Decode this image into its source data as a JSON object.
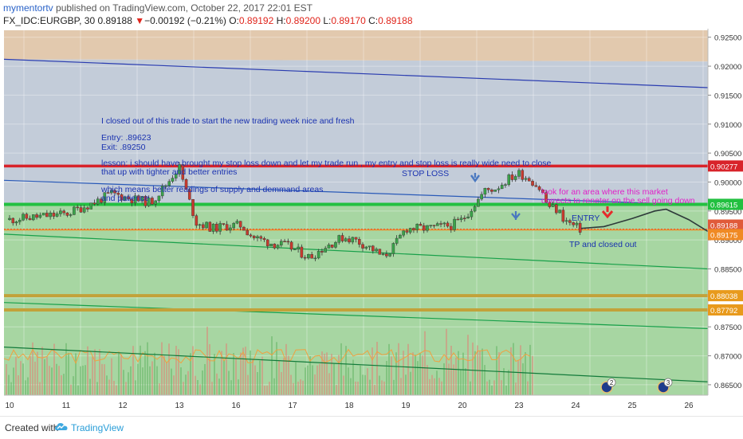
{
  "header": {
    "author": "mymentortv",
    "published": "published on TradingView.com, October 22, 2017 22:01 EST",
    "symbol": "FX_IDC:EURGBP, 30",
    "last": "0.89188",
    "arrow": "▼",
    "change": "−0.00192 (−0.21%)",
    "o_label": "O:",
    "o": "0.89192",
    "h_label": "H:",
    "h": "0.89200",
    "l_label": "L:",
    "l": "0.89170",
    "c_label": "C:",
    "c": "0.89188"
  },
  "footer": {
    "created": "Created with",
    "brand": "TradingView"
  },
  "colors": {
    "upper_zone": "#e2c9ae",
    "channel_zone": "#c3ccd9",
    "lower_zone": "#a7d6a2",
    "stop_line": "#d8232a",
    "entry_line": "#22c040",
    "tp_line": "#f08a24",
    "supply_line": "#c2a23a",
    "channel_line": "#2a3cb0",
    "green_line": "#18a04a",
    "candle_up": "#3aa44a",
    "candle_down": "#c83a2e",
    "note_text": "#1a32b0",
    "note_pink": "#e020c8",
    "arrow_blue": "#4a78c0",
    "arrow_red": "#e52b2b"
  },
  "chart_data": {
    "type": "candlestick",
    "x_ticks": [
      "10",
      "11",
      "12",
      "13",
      "16",
      "17",
      "18",
      "19",
      "20",
      "23",
      "24",
      "25",
      "26"
    ],
    "y_ticks": [
      "0.92500",
      "0.92000",
      "0.91500",
      "0.91000",
      "0.90500",
      "0.90000",
      "0.89500",
      "0.89000",
      "0.88500",
      "0.88000",
      "0.87500",
      "0.87000",
      "0.86500"
    ],
    "ylim": [
      0.8632,
      0.9262
    ],
    "price_trace": [
      [
        0.0,
        0.8935
      ],
      [
        0.5,
        0.894
      ],
      [
        1.0,
        0.8945
      ],
      [
        1.5,
        0.8965
      ],
      [
        1.8,
        0.898
      ],
      [
        2.2,
        0.897
      ],
      [
        2.5,
        0.8965
      ],
      [
        2.8,
        0.9
      ],
      [
        2.9,
        0.9015
      ],
      [
        3.0,
        0.9025
      ],
      [
        3.1,
        0.899
      ],
      [
        3.3,
        0.893
      ],
      [
        3.6,
        0.892
      ],
      [
        3.9,
        0.8925
      ],
      [
        4.1,
        0.8925
      ],
      [
        4.3,
        0.8905
      ],
      [
        4.6,
        0.8895
      ],
      [
        4.9,
        0.889
      ],
      [
        5.1,
        0.888
      ],
      [
        5.3,
        0.887
      ],
      [
        5.6,
        0.889
      ],
      [
        5.9,
        0.8905
      ],
      [
        6.1,
        0.89
      ],
      [
        6.4,
        0.8885
      ],
      [
        6.6,
        0.887
      ],
      [
        6.8,
        0.889
      ],
      [
        7.0,
        0.892
      ],
      [
        7.4,
        0.892
      ],
      [
        7.8,
        0.8925
      ],
      [
        8.0,
        0.8935
      ],
      [
        8.2,
        0.896
      ],
      [
        8.4,
        0.8985
      ],
      [
        8.6,
        0.899
      ],
      [
        8.8,
        0.9005
      ],
      [
        9.0,
        0.9015
      ],
      [
        9.2,
        0.9005
      ],
      [
        9.4,
        0.8985
      ],
      [
        9.5,
        0.896
      ],
      [
        9.7,
        0.895
      ],
      [
        9.8,
        0.8935
      ],
      [
        9.95,
        0.8925
      ],
      [
        10.05,
        0.892
      ],
      [
        10.1,
        0.8918
      ]
    ],
    "projection": [
      [
        10.1,
        0.892
      ],
      [
        10.5,
        0.8923
      ],
      [
        11.0,
        0.8937
      ],
      [
        11.4,
        0.895
      ],
      [
        11.6,
        0.8953
      ],
      [
        12.0,
        0.8935
      ],
      [
        12.5,
        0.8905
      ],
      [
        12.8,
        0.889
      ],
      [
        13.2,
        0.8885
      ],
      [
        13.6,
        0.8885
      ],
      [
        13.9,
        0.8888
      ]
    ],
    "levels": [
      {
        "name": "stop",
        "value": 0.90277,
        "label": "0.90277"
      },
      {
        "name": "entry",
        "value": 0.89615,
        "label": "0.89615"
      },
      {
        "name": "current",
        "value": 0.89188,
        "label": "0.89188"
      },
      {
        "name": "tp",
        "value": 0.89175,
        "label": "0.89175"
      },
      {
        "name": "zone-top",
        "value": 0.88038,
        "label": "0.88038"
      },
      {
        "name": "zone-bottom",
        "value": 0.87792,
        "label": "0.87792"
      }
    ],
    "annotations": {
      "note1": "I closed out of this trade to start the new trading week nice and fresh",
      "note_entry": "Entry: .89623",
      "note_exit": "Exit: .89250",
      "note_lesson_1": "lesson: i should have brought my stop loss down and let my trade run , my entry and stop loss is really wide need to close",
      "note_lesson_2": "that up with tighter and better entries",
      "note_means_1": "which means better readings of supply and demmand areas",
      "note_means_2": "and patience",
      "stop_loss": "STOP LOSS",
      "entry": "ENTRY",
      "tp": "TP and closed out",
      "look_1": "look for an area where this market",
      "look_2": "corrects to reneter on the sell going down"
    },
    "events": [
      {
        "x": 10.55,
        "label": "2"
      },
      {
        "x": 11.55,
        "label": "3"
      },
      {
        "x": 12.55,
        "label": "3"
      }
    ]
  }
}
